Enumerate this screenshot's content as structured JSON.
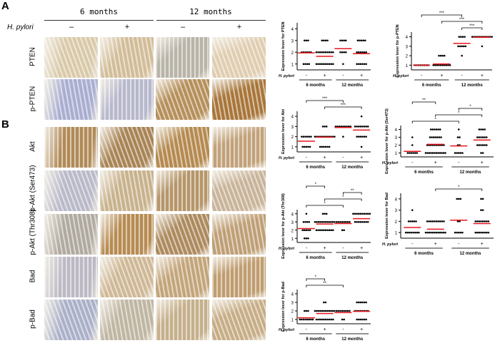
{
  "panels": {
    "a": "A",
    "b": "B"
  },
  "header": {
    "col_groups": [
      "6 months",
      "12 months"
    ],
    "hp_label": "H. pylori",
    "signs": [
      "–",
      "+",
      "–",
      "+"
    ]
  },
  "rows": [
    "PTEN",
    "p-PTEN",
    "Akt",
    "p-Akt (Ser473)",
    "p-Akt (Thr308)",
    "Bad",
    "p-Bad"
  ],
  "tissue_tints": [
    [
      "#d9c9a8",
      "#d2bd98",
      "#b9b4a8",
      "#e0cdb0"
    ],
    [
      "#a9add0",
      "#b8b8cc",
      "#b58f5a",
      "#a8763a"
    ],
    [
      "#b08a58",
      "#a88455",
      "#b58a50",
      "#c2a27a"
    ],
    [
      "#b9b9c9",
      "#c8b28c",
      "#b6966a",
      "#c9b49a"
    ],
    [
      "#b0a99f",
      "#b78b52",
      "#ad8a5e",
      "#bf9f76"
    ],
    [
      "#bcb9c4",
      "#cfb896",
      "#c3a57a",
      "#c09d70"
    ],
    [
      "#aab0c8",
      "#bfb6a2",
      "#c6b08c",
      "#c7ad86"
    ]
  ],
  "chart_data": [
    {
      "type": "scatter",
      "ylabel": "Expression lever for PTEN",
      "ylim": [
        0.5,
        4.5
      ],
      "yticks": [
        1,
        2,
        3,
        4
      ],
      "group_label": "H. pylori",
      "groups": [
        "-",
        "+",
        "-",
        "+"
      ],
      "timepoints": [
        "6 months",
        "12 months"
      ],
      "counts": [
        {
          "1": 4,
          "2": 6,
          "3": 3
        },
        {
          "1": 10,
          "2": 10,
          "3": 4
        },
        {
          "1": 1,
          "2": 4,
          "3": 4
        },
        {
          "1": 6,
          "2": 6,
          "3": 5
        }
      ],
      "means": [
        1.95,
        1.65,
        2.3,
        1.88
      ],
      "mean_color": "#e8141b",
      "brackets": []
    },
    {
      "type": "scatter",
      "ylabel": "Expression lever for p-PTEN",
      "ylim": [
        0.5,
        4.5
      ],
      "yticks": [
        1,
        2,
        3,
        4
      ],
      "group_label": "H. pylori",
      "groups": [
        "-",
        "+",
        "-",
        "+"
      ],
      "timepoints": [
        "6 months",
        "12 months"
      ],
      "counts": [
        {
          "1": 8
        },
        {
          "1": 10,
          "2": 4
        },
        {
          "2": 1,
          "3": 5,
          "4": 4
        },
        {
          "3": 1,
          "4": 12
        }
      ],
      "means": [
        1.0,
        1.12,
        3.3,
        3.95
      ],
      "mean_color": "#e8141b",
      "brackets": [
        {
          "from": 0,
          "to": 2,
          "label": "***"
        },
        {
          "from": 1,
          "to": 3,
          "label": "***"
        },
        {
          "from": 2,
          "to": 3,
          "label": "***"
        }
      ]
    },
    {
      "type": "scatter",
      "ylabel": "Expression lever for Akt",
      "ylim": [
        0.5,
        4.5
      ],
      "yticks": [
        1,
        2,
        3,
        4
      ],
      "group_label": "H. pylori",
      "groups": [
        "-",
        "+",
        "-",
        "+"
      ],
      "timepoints": [
        "6 months",
        "12 months"
      ],
      "counts": [
        {
          "1": 5,
          "2": 6
        },
        {
          "1": 6,
          "2": 12,
          "3": 3
        },
        {
          "2": 1,
          "3": 9
        },
        {
          "1": 1,
          "2": 6,
          "3": 8,
          "4": 1
        }
      ],
      "means": [
        1.55,
        1.95,
        2.9,
        2.65
      ],
      "mean_color": "#e8141b",
      "brackets": [
        {
          "from": 0,
          "to": 2,
          "label": "***"
        },
        {
          "from": 1,
          "to": 3,
          "label": "***"
        }
      ]
    },
    {
      "type": "scatter",
      "ylabel": "Expression lever for p-Akt (Ser473)",
      "ylim": [
        0.5,
        4.5
      ],
      "yticks": [
        1,
        2,
        3,
        4
      ],
      "group_label": "H. pylori",
      "groups": [
        "-",
        "+",
        "-",
        "+"
      ],
      "timepoints": [
        "6 months",
        "12 months"
      ],
      "counts": [
        {
          "1": 6,
          "2": 1,
          "3": 1
        },
        {
          "1": 12,
          "2": 10,
          "3": 7,
          "4": 6
        },
        {
          "1": 5,
          "2": 2,
          "3": 2,
          "4": 1
        },
        {
          "1": 2,
          "2": 6,
          "3": 6,
          "4": 4
        }
      ],
      "means": [
        1.2,
        2.1,
        1.9,
        2.65
      ],
      "mean_color": "#e8141b",
      "brackets": [
        {
          "from": 0,
          "to": 1,
          "label": "**"
        },
        {
          "from": 2,
          "to": 3,
          "label": "*"
        },
        {
          "from": 1,
          "to": 3,
          "label": "*"
        },
        {
          "from": 0,
          "to": 2,
          "label": "*"
        }
      ]
    },
    {
      "type": "scatter",
      "ylabel": "Expression lever for p-Akt (Thr308)",
      "ylim": [
        0.5,
        4.5
      ],
      "yticks": [
        1,
        2,
        3,
        4
      ],
      "group_label": "H. pylori",
      "groups": [
        "-",
        "+",
        "-",
        "+"
      ],
      "timepoints": [
        "6 months",
        "12 months"
      ],
      "counts": [
        {
          "1": 3,
          "2": 5,
          "3": 4,
          "4": 1
        },
        {
          "2": 10,
          "3": 12,
          "4": 3
        },
        {
          "2": 2,
          "3": 8
        },
        {
          "3": 8,
          "4": 10
        }
      ],
      "means": [
        2.2,
        2.75,
        2.8,
        3.4
      ],
      "mean_color": "#e8141b",
      "brackets": [
        {
          "from": 0,
          "to": 1,
          "label": "*"
        },
        {
          "from": 2,
          "to": 3,
          "label": "**"
        },
        {
          "from": 1,
          "to": 3,
          "label": "*"
        },
        {
          "from": 0,
          "to": 2,
          "label": "*"
        }
      ]
    },
    {
      "type": "scatter",
      "ylabel": "Expression lever for Bad",
      "ylim": [
        0.5,
        4.5
      ],
      "yticks": [
        1,
        2,
        3,
        4
      ],
      "group_label": "H. pylori",
      "groups": [
        "-",
        "+",
        "-",
        "+"
      ],
      "timepoints": [
        "6 months",
        "12 months"
      ],
      "counts": [
        {
          "1": 8,
          "2": 5,
          "3": 1
        },
        {
          "1": 12,
          "2": 10
        },
        {
          "1": 5,
          "2": 2,
          "4": 3
        },
        {
          "1": 8,
          "2": 8,
          "3": 2,
          "4": 2
        }
      ],
      "means": [
        1.45,
        1.3,
        2.1,
        1.8
      ],
      "mean_color": "#e8141b",
      "brackets": [
        {
          "from": 1,
          "to": 3,
          "label": "*"
        }
      ]
    },
    {
      "type": "scatter",
      "ylabel": "Expression lever for p-Bad",
      "ylim": [
        0.5,
        4.5
      ],
      "yticks": [
        1,
        2,
        3,
        4
      ],
      "group_label": "H. pylori",
      "groups": [
        "-",
        "+",
        "-",
        "+"
      ],
      "timepoints": [
        "6 months",
        "12 months"
      ],
      "counts": [
        {
          "1": 8,
          "2": 3
        },
        {
          "1": 10,
          "2": 12,
          "3": 2
        },
        {
          "1": 2,
          "2": 8
        },
        {
          "1": 6,
          "2": 8,
          "3": 6
        }
      ],
      "means": [
        1.2,
        1.7,
        1.8,
        1.95
      ],
      "mean_color": "#e8141b",
      "brackets": [
        {
          "from": 0,
          "to": 1,
          "label": "*"
        },
        {
          "from": 0,
          "to": 2,
          "label": "**"
        }
      ]
    }
  ]
}
